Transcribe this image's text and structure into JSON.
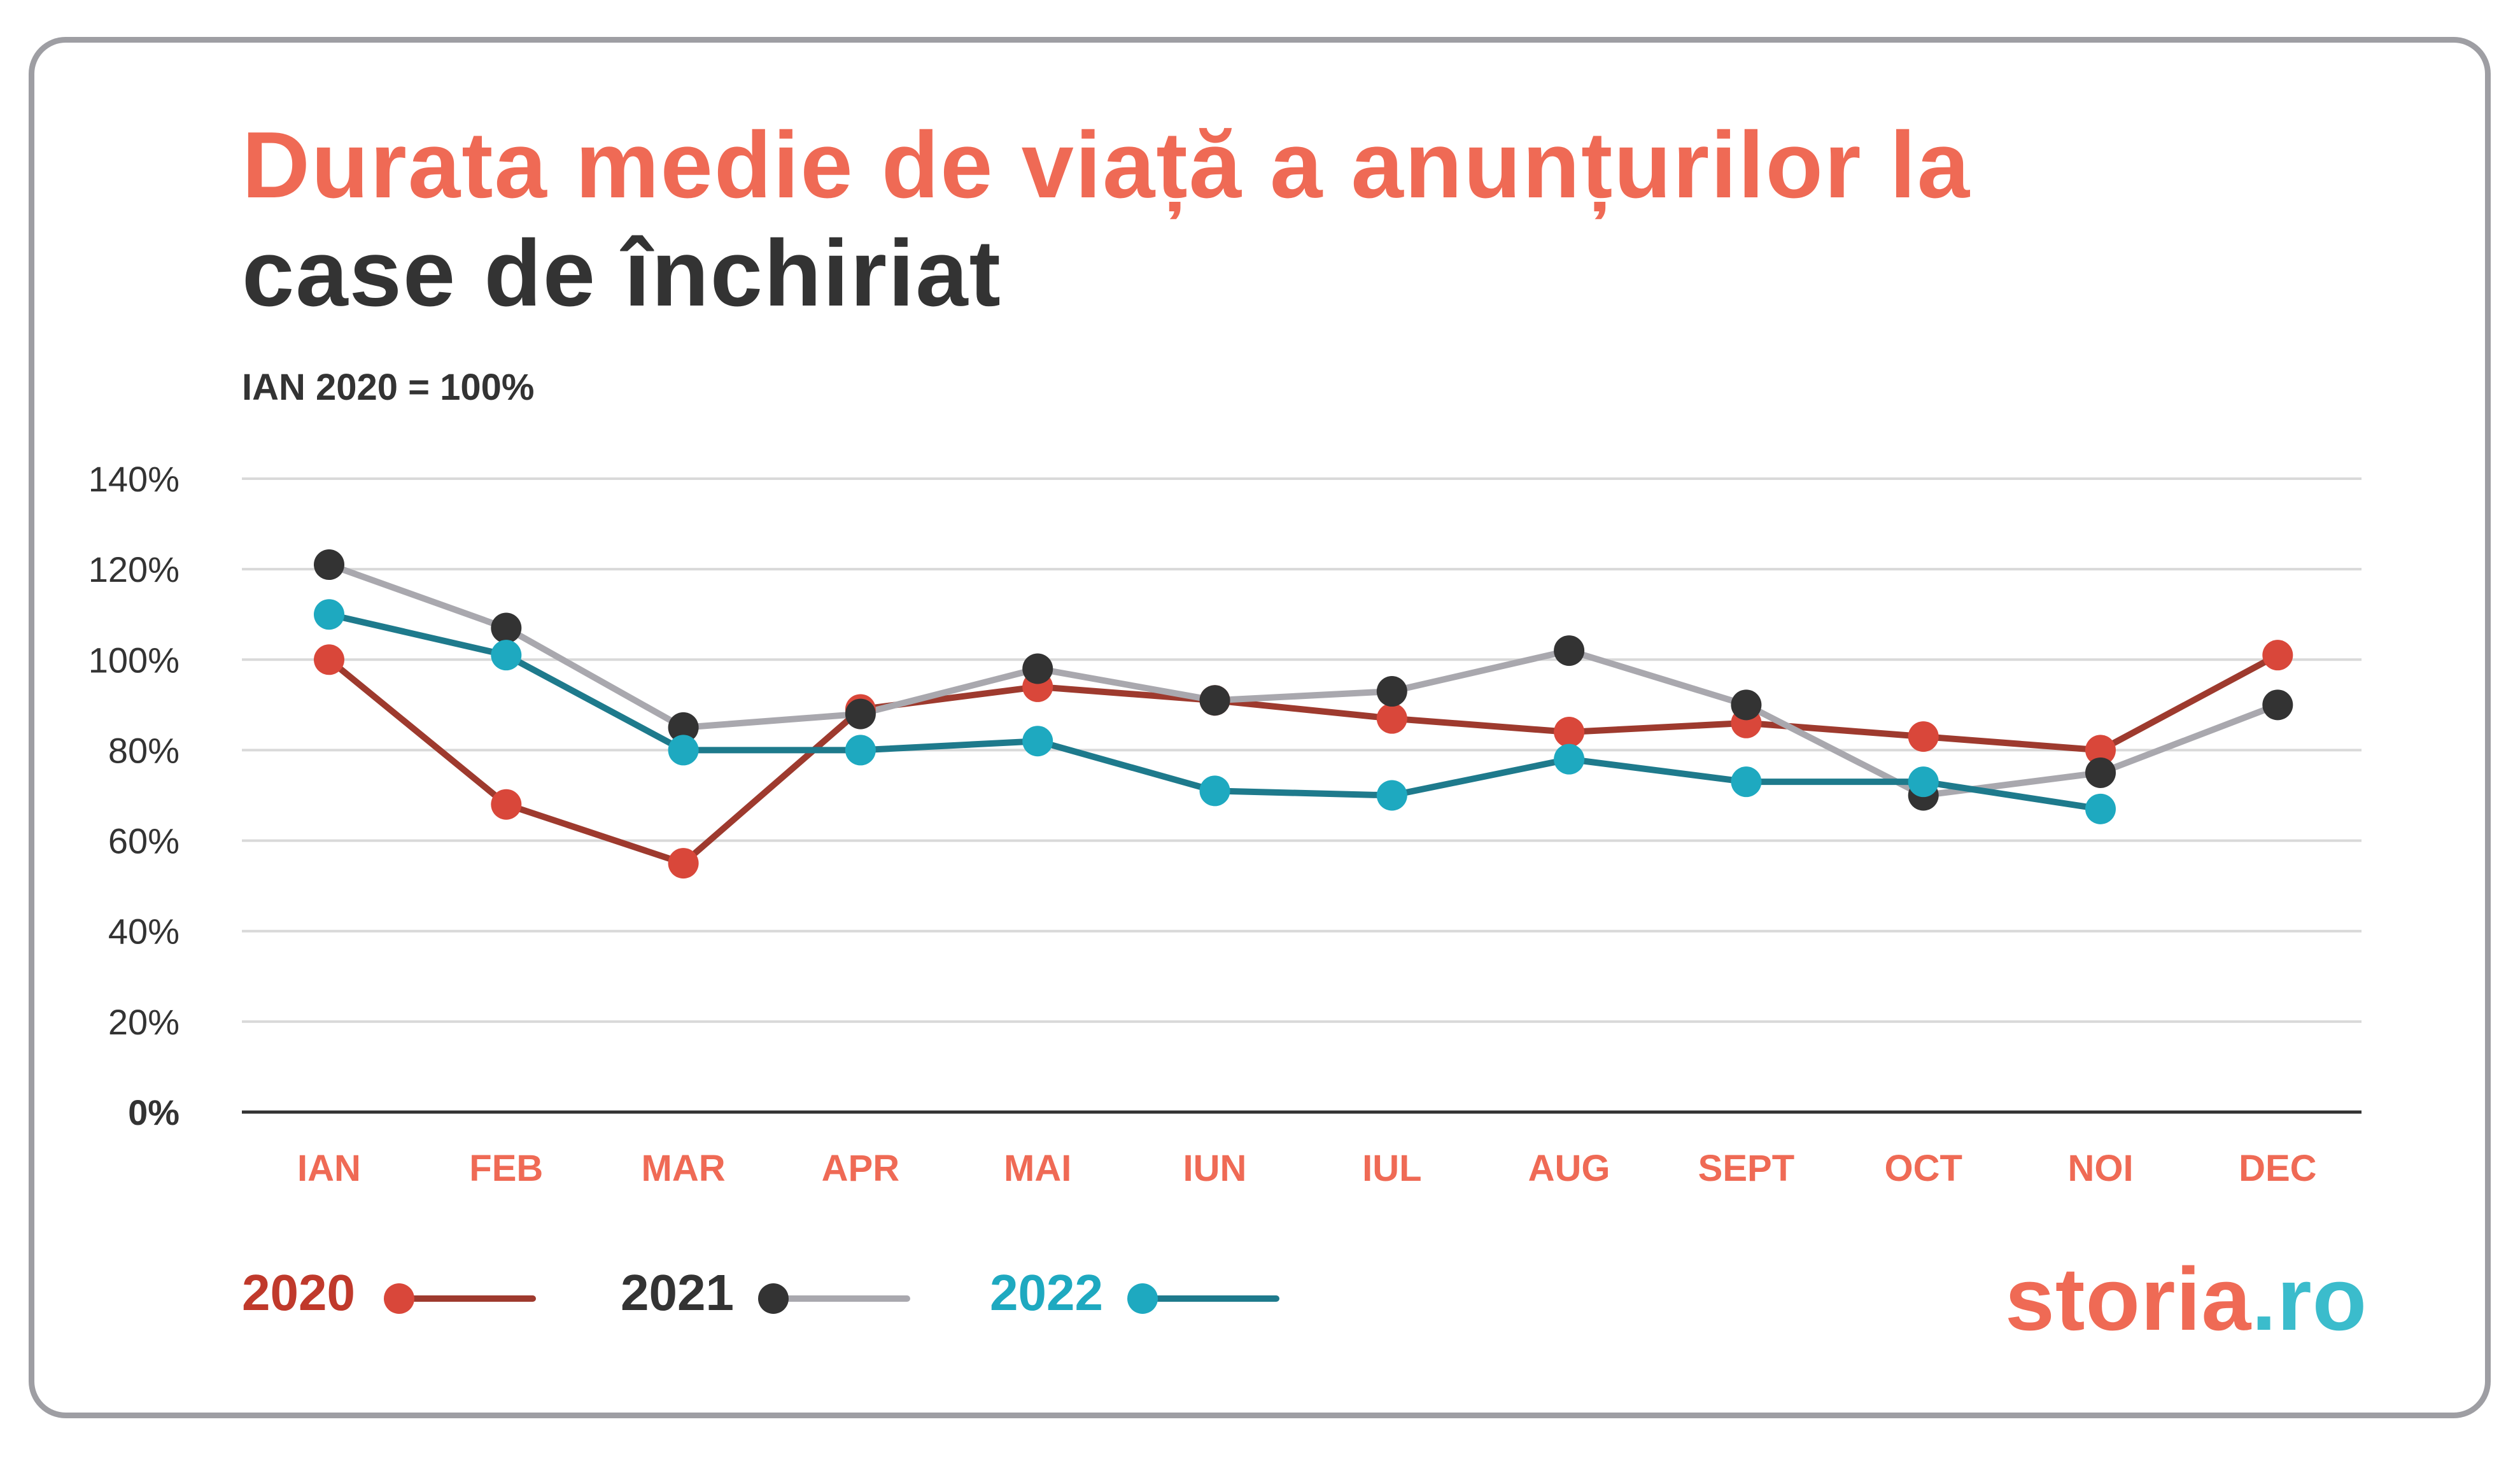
{
  "title": {
    "line1": "Durata medie de viață a anunțurilor la",
    "line2": "case de închiriat"
  },
  "subtitle": "IAN 2020 = 100%",
  "logo": {
    "main": "storia",
    "suffix": ".ro"
  },
  "colors": {
    "title_accent": "#ef6a55",
    "dark_text": "#333333",
    "grid": "#d9d9d9",
    "axis": "#333333",
    "tick_x": "#ef6a55"
  },
  "chart_data": {
    "type": "line",
    "title": "Durata medie de viață a anunțurilor la case de închiriat",
    "subtitle": "IAN 2020 = 100%",
    "categories": [
      "IAN",
      "FEB",
      "MAR",
      "APR",
      "MAI",
      "IUN",
      "IUL",
      "AUG",
      "SEPT",
      "OCT",
      "NOI",
      "DEC"
    ],
    "y_ticks": [
      "0%",
      "20%",
      "40%",
      "60%",
      "80%",
      "100%",
      "120%",
      "140%"
    ],
    "ylim": [
      0,
      140
    ],
    "grid": true,
    "legend_position": "bottom-left",
    "series": [
      {
        "name": "2020",
        "line_color": "#9e3a2e",
        "marker_color": "#d9473a",
        "label_color": "#c0392b",
        "values": [
          100,
          68,
          55,
          89,
          94,
          91,
          87,
          84,
          86,
          83,
          80,
          101
        ]
      },
      {
        "name": "2021",
        "line_color": "#a9a8ae",
        "marker_color": "#333333",
        "label_color": "#333333",
        "values": [
          121,
          107,
          85,
          88,
          98,
          91,
          93,
          102,
          90,
          70,
          75,
          90
        ]
      },
      {
        "name": "2022",
        "line_color": "#1e7a8c",
        "marker_color": "#1ea9c0",
        "label_color": "#1ea9c0",
        "values": [
          110,
          101,
          80,
          80,
          82,
          71,
          70,
          78,
          73,
          73,
          67,
          null
        ]
      }
    ]
  }
}
